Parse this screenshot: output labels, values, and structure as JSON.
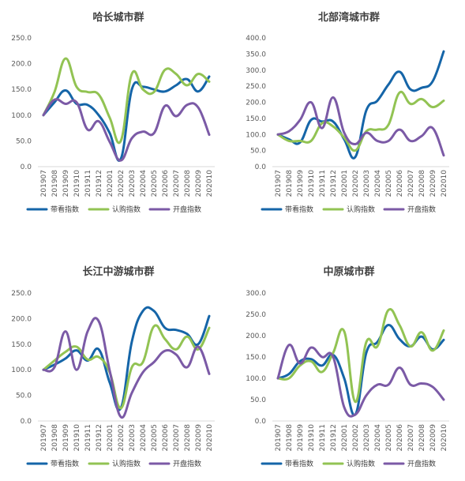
{
  "colors": {
    "带看指数": "#1565a8",
    "认购指数": "#92c353",
    "开盘指数": "#7b5aa6"
  },
  "chart_data": [
    {
      "type": "line",
      "title": "哈长城市群",
      "categories": [
        "201907",
        "201908",
        "201909",
        "201910",
        "201911",
        "201912",
        "202001",
        "202002",
        "202003",
        "202004",
        "202005",
        "202006",
        "202007",
        "202008",
        "202009",
        "202010"
      ],
      "ylim": [
        0,
        250
      ],
      "yticks": [
        "0.0",
        "50.0",
        "100.0",
        "150.0",
        "200.0",
        "250.0"
      ],
      "legend": "bottom",
      "series": [
        {
          "name": "带看指数",
          "values": [
            100,
            125,
            148,
            122,
            120,
            100,
            65,
            15,
            150,
            155,
            150,
            146,
            158,
            170,
            146,
            175
          ]
        },
        {
          "name": "认购指数",
          "values": [
            100,
            145,
            210,
            155,
            145,
            140,
            95,
            50,
            180,
            150,
            145,
            188,
            180,
            158,
            180,
            165
          ]
        },
        {
          "name": "开盘指数",
          "values": [
            100,
            130,
            122,
            125,
            72,
            88,
            48,
            12,
            55,
            68,
            65,
            118,
            98,
            120,
            115,
            62
          ]
        }
      ]
    },
    {
      "type": "line",
      "title": "北部湾城市群",
      "categories": [
        "201907",
        "201908",
        "201909",
        "201910",
        "201911",
        "201912",
        "202001",
        "202002",
        "202003",
        "202004",
        "202005",
        "202006",
        "202007",
        "202008",
        "202009",
        "202010"
      ],
      "ylim": [
        0,
        400
      ],
      "yticks": [
        "0.0",
        "50.0",
        "100.0",
        "150.0",
        "200.0",
        "250.0",
        "300.0",
        "350.0",
        "400.0"
      ],
      "legend": "bottom",
      "series": [
        {
          "name": "带看指数",
          "values": [
            100,
            85,
            75,
            145,
            140,
            140,
            85,
            30,
            175,
            205,
            255,
            295,
            240,
            245,
            265,
            358
          ]
        },
        {
          "name": "认购指数",
          "values": [
            100,
            80,
            80,
            80,
            135,
            125,
            90,
            50,
            110,
            115,
            130,
            230,
            195,
            210,
            185,
            205
          ]
        },
        {
          "name": "开盘指数",
          "values": [
            100,
            110,
            145,
            200,
            120,
            215,
            105,
            70,
            105,
            80,
            80,
            115,
            80,
            95,
            120,
            35
          ]
        }
      ]
    },
    {
      "type": "line",
      "title": "长江中游城市群",
      "categories": [
        "201907",
        "201908",
        "201909",
        "201910",
        "201911",
        "201912",
        "202001",
        "202002",
        "202003",
        "202004",
        "202005",
        "202006",
        "202007",
        "202008",
        "202009",
        "202010"
      ],
      "ylim": [
        0,
        250
      ],
      "yticks": [
        "0.0",
        "50.0",
        "100.0",
        "150.0",
        "200.0",
        "250.0"
      ],
      "legend": "bottom",
      "series": [
        {
          "name": "带看指数",
          "values": [
            100,
            110,
            122,
            138,
            118,
            140,
            75,
            25,
            155,
            215,
            215,
            182,
            178,
            170,
            150,
            205
          ]
        },
        {
          "name": "认购指数",
          "values": [
            100,
            118,
            135,
            145,
            120,
            125,
            95,
            25,
            105,
            115,
            185,
            160,
            140,
            165,
            140,
            182
          ]
        },
        {
          "name": "开盘指数",
          "values": [
            100,
            105,
            175,
            100,
            175,
            195,
            98,
            8,
            55,
            95,
            115,
            137,
            130,
            105,
            145,
            92
          ]
        }
      ]
    },
    {
      "type": "line",
      "title": "中原城市群",
      "categories": [
        "201907",
        "201908",
        "201909",
        "201910",
        "201911",
        "201912",
        "202001",
        "202002",
        "202003",
        "202004",
        "202005",
        "202006",
        "202007",
        "202008",
        "202009",
        "202010"
      ],
      "ylim": [
        0,
        300
      ],
      "yticks": [
        "0.0",
        "50.0",
        "100.0",
        "150.0",
        "200.0",
        "250.0",
        "300.0"
      ],
      "legend": "bottom",
      "series": [
        {
          "name": "带看指数",
          "values": [
            100,
            110,
            140,
            145,
            130,
            155,
            100,
            15,
            160,
            185,
            225,
            192,
            175,
            198,
            168,
            190
          ]
        },
        {
          "name": "认购指数",
          "values": [
            100,
            100,
            130,
            140,
            115,
            160,
            210,
            45,
            185,
            175,
            260,
            225,
            175,
            208,
            165,
            212
          ]
        },
        {
          "name": "开盘指数",
          "values": [
            100,
            178,
            135,
            172,
            150,
            150,
            32,
            15,
            60,
            85,
            85,
            125,
            85,
            88,
            80,
            50
          ]
        }
      ]
    }
  ]
}
